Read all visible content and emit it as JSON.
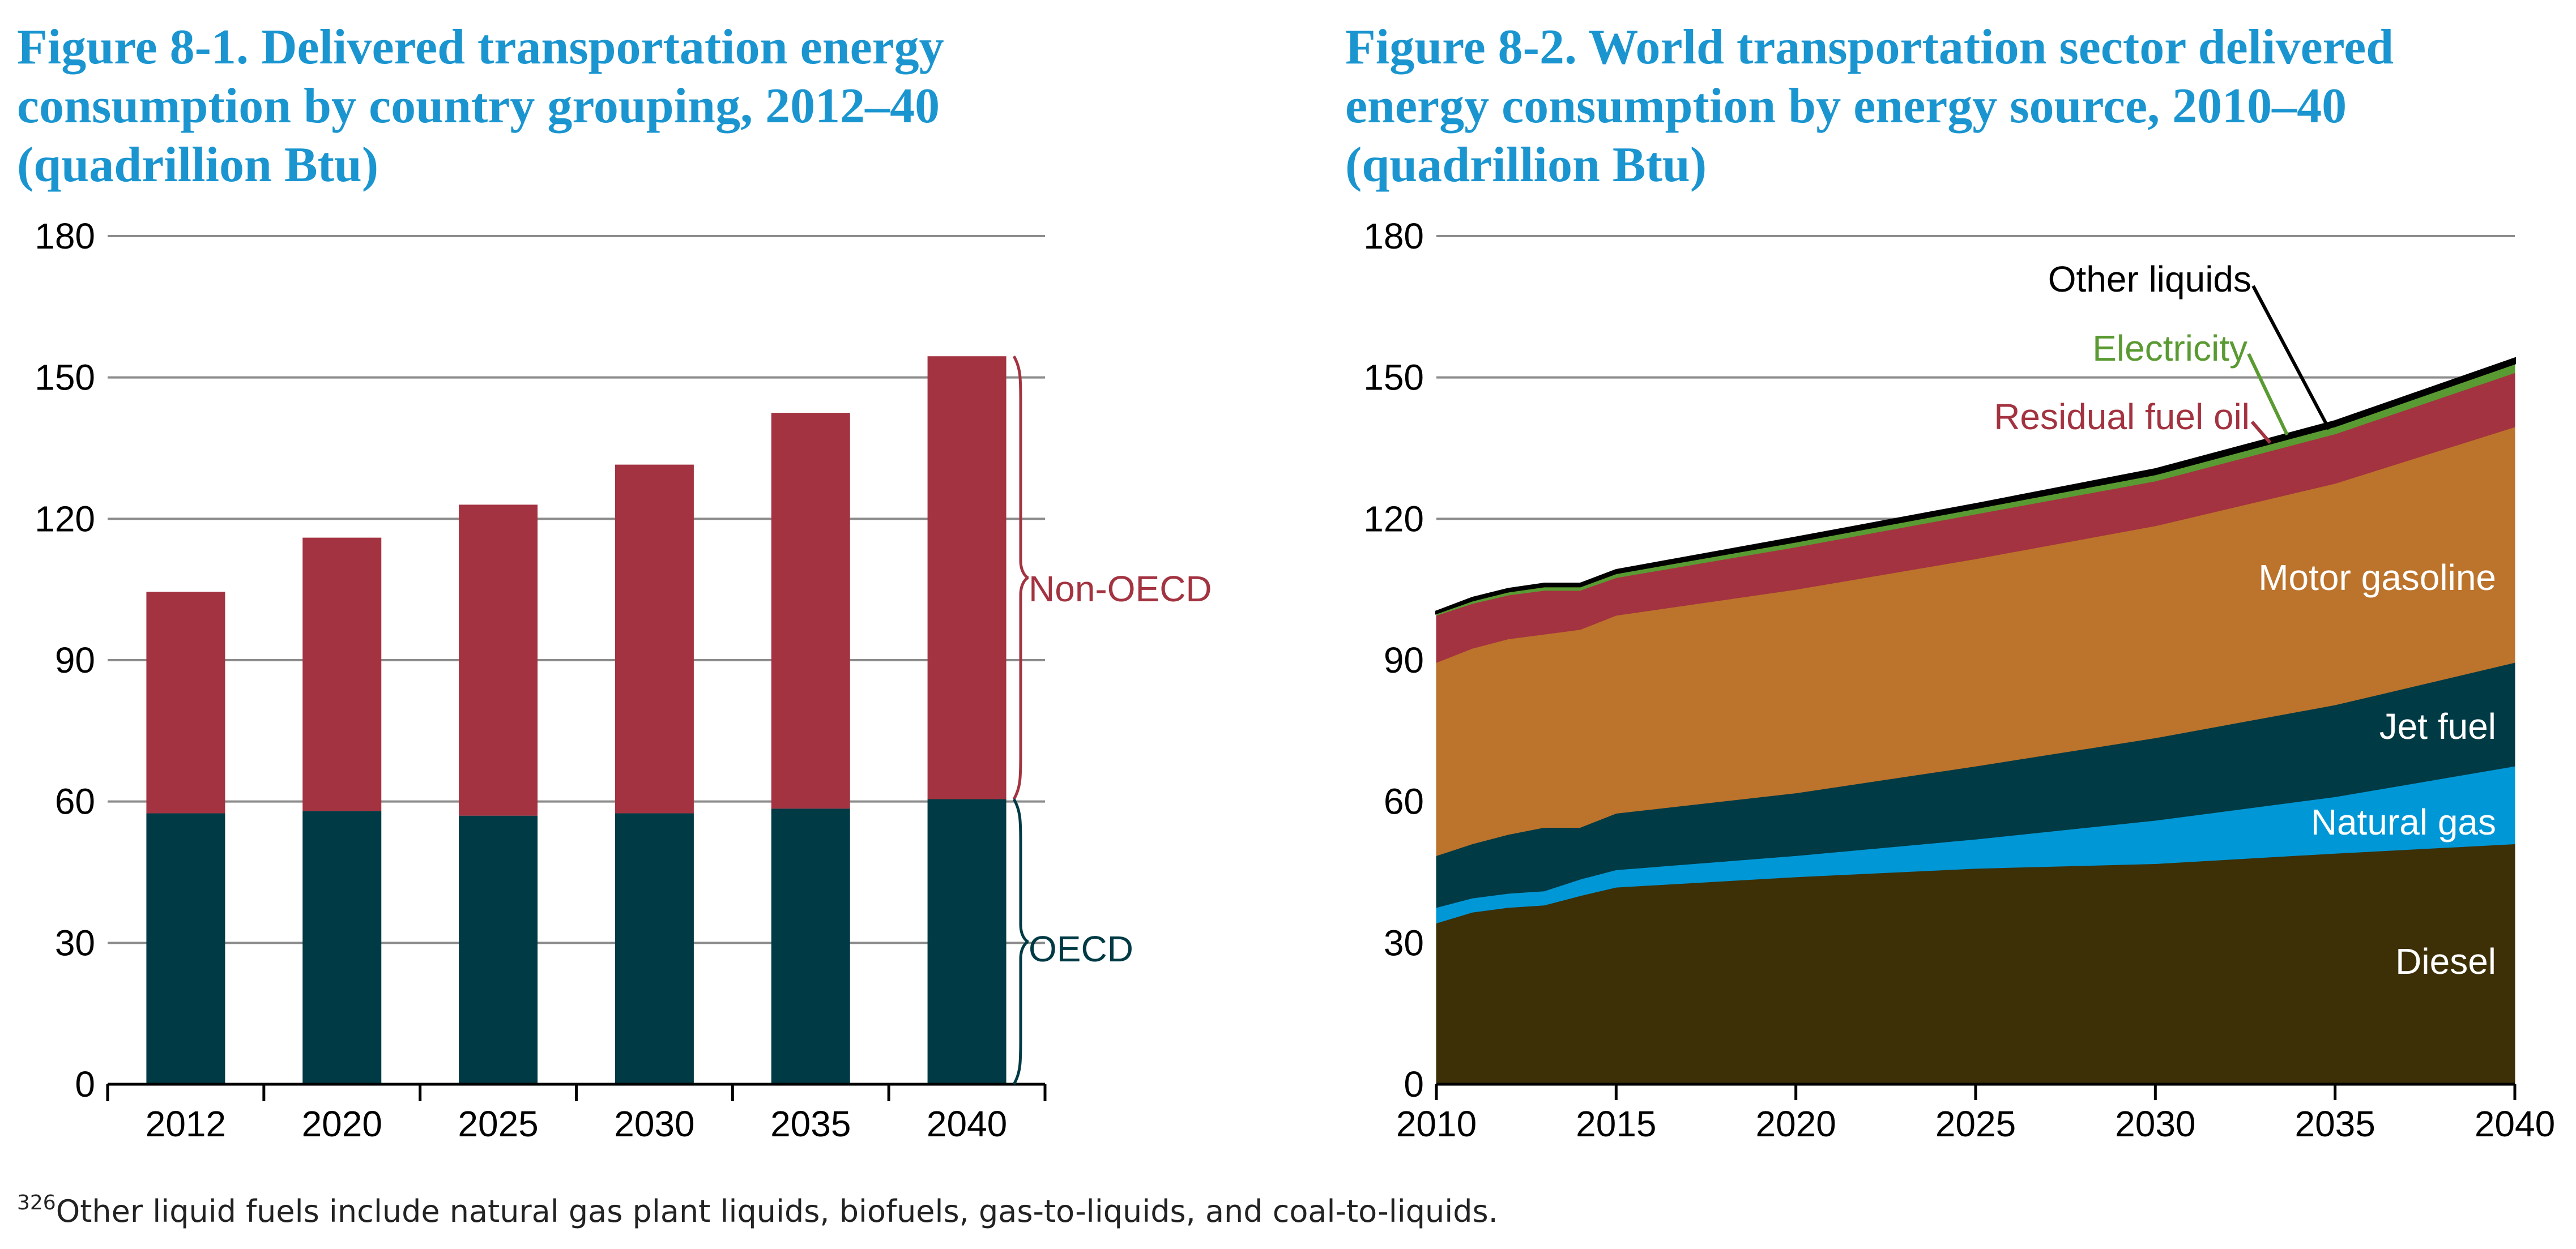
{
  "footnote": {
    "marker": "326",
    "text": "Other liquid fuels include natural gas plant liquids, biofuels, gas-to-liquids, and coal-to-liquids."
  },
  "chart_data": [
    {
      "type": "bar",
      "stacked": true,
      "title_lines": [
        "Figure 8-1. Delivered transportation energy",
        "consumption by country grouping, 2012–40",
        "(quadrillion Btu)"
      ],
      "categories": [
        "2012",
        "2020",
        "2025",
        "2030",
        "2035",
        "2040"
      ],
      "series": [
        {
          "name": "OECD",
          "color": "#003a44",
          "values": [
            57.5,
            58,
            57,
            57.5,
            58.5,
            60.5
          ]
        },
        {
          "name": "Non-OECD",
          "color": "#a33340",
          "values": [
            47,
            58,
            66,
            74,
            84,
            94
          ]
        }
      ],
      "ylim": [
        0,
        180
      ],
      "yticks": [
        "0",
        "30",
        "60",
        "90",
        "120",
        "150",
        "180"
      ],
      "grid": true,
      "legend": "braces-right"
    },
    {
      "type": "area",
      "stacked": true,
      "title_lines": [
        "Figure 8-2. World transportation sector delivered",
        "energy consumption by energy source, 2010–40",
        "(quadrillion Btu)"
      ],
      "x": [
        2010,
        2011,
        2012,
        2013,
        2014,
        2015,
        2020,
        2025,
        2030,
        2035,
        2040
      ],
      "series": [
        {
          "name": "Diesel",
          "color": "#3d2f06",
          "values": [
            34.2,
            36.5,
            37.5,
            38,
            40,
            41.8,
            44,
            45.8,
            46.8,
            49,
            51
          ]
        },
        {
          "name": "Natural gas",
          "color": "#0097d6",
          "values": [
            3.3,
            3,
            3,
            3,
            3.5,
            3.7,
            4.5,
            6.2,
            9.2,
            12,
            16.5
          ]
        },
        {
          "name": "Jet fuel",
          "color": "#003a44",
          "values": [
            11,
            11.5,
            12.5,
            13.5,
            11,
            12,
            13.3,
            15.5,
            17.5,
            19.5,
            22
          ]
        },
        {
          "name": "Motor gasoline",
          "color": "#bc732b",
          "values": [
            41,
            41.5,
            41.5,
            41,
            42,
            42,
            43.2,
            44,
            45,
            47,
            50
          ]
        },
        {
          "name": "Residual fuel oil",
          "color": "#a33340",
          "values": [
            10,
            9.5,
            9.3,
            9.3,
            8.3,
            8,
            9,
            9.5,
            9.5,
            10.5,
            11.5
          ]
        },
        {
          "name": "Electricity",
          "color": "#5a9a32",
          "values": [
            0.5,
            0.7,
            0.8,
            0.9,
            0.9,
            1,
            1.2,
            1.3,
            1.5,
            1.7,
            2
          ]
        },
        {
          "name": "Other liquids",
          "color": "#000000",
          "values": [
            0.3,
            0.5,
            0.5,
            0.5,
            0.5,
            0.6,
            0.8,
            0.8,
            1,
            1,
            1
          ]
        }
      ],
      "xticks": [
        "2010",
        "2015",
        "2020",
        "2025",
        "2030",
        "2035",
        "2040"
      ],
      "ylim": [
        0,
        180
      ],
      "yticks": [
        "0",
        "30",
        "60",
        "90",
        "120",
        "150",
        "180"
      ],
      "grid": true,
      "legend": "direct-labels"
    }
  ]
}
